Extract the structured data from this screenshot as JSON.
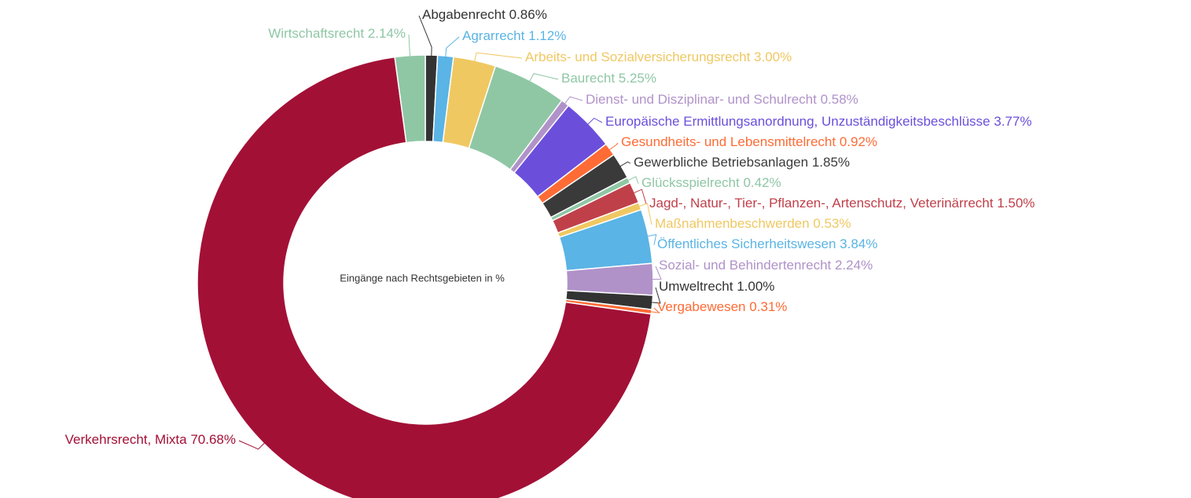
{
  "chart_data": {
    "type": "donut",
    "title": "Eingänge nach Rechtsgebieten in %",
    "categories": [
      "Abgabenrecht",
      "Agrarrecht",
      "Arbeits- und Sozialversicherungsrecht",
      "Baurecht",
      "Dienst- und Disziplinar- und Schulrecht",
      "Europäische Ermittlungsanordnung, Unzuständigkeitsbeschlüsse",
      "Gesundheits- und Lebensmittelrecht",
      "Gewerbliche Betriebsanlagen",
      "Glücksspielrecht",
      "Jagd-, Natur-, Tier-, Pflanzen-, Artenschutz, Veterinärrecht",
      "Maßnahmenbeschwerden",
      "Öffentliches Sicherheitswesen",
      "Sozial- und Behindertenrecht",
      "Umweltrecht",
      "Vergabewesen",
      "Verkehrsrecht, Mixta",
      "Wirtschaftsrecht"
    ],
    "values": [
      0.86,
      1.12,
      3.0,
      5.25,
      0.58,
      3.77,
      0.92,
      1.85,
      0.42,
      1.5,
      0.53,
      3.84,
      2.24,
      1.0,
      0.31,
      70.68,
      2.14
    ],
    "value_labels": [
      "0.86%",
      "1.12%",
      "3.00%",
      "5.25%",
      "0.58%",
      "3.77%",
      "0.92%",
      "1.85%",
      "0.42%",
      "1.50%",
      "0.53%",
      "3.84%",
      "2.24%",
      "1.00%",
      "0.31%",
      "70.68%",
      "2.14%"
    ],
    "colors": [
      "#333333",
      "#5ab4e5",
      "#f0c862",
      "#8fc7a5",
      "#b092c9",
      "#6b4fdb",
      "#ff6b35",
      "#3a3a3a",
      "#8fc7a5",
      "#c0404a",
      "#f0c862",
      "#5ab4e5",
      "#b092c9",
      "#333333",
      "#ff6b35",
      "#a31036",
      "#8fc7a5"
    ]
  }
}
